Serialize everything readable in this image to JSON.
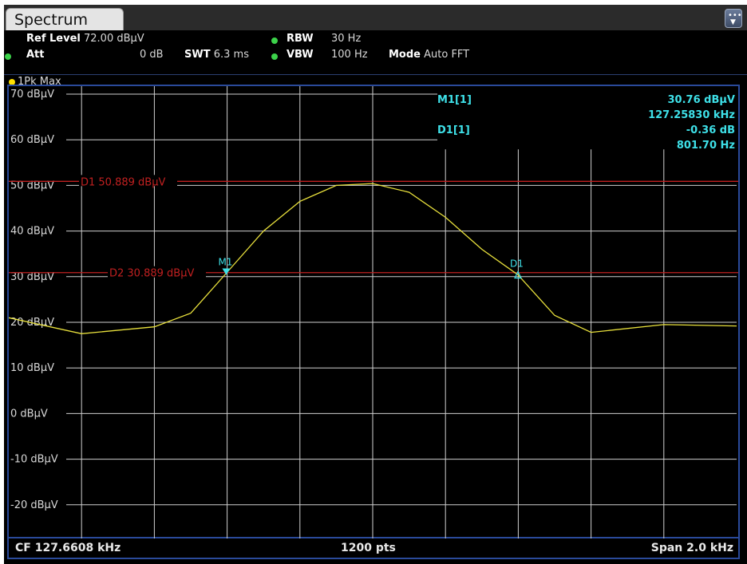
{
  "window": {
    "tab_title": "Spectrum"
  },
  "settings": {
    "ref_level_label": "Ref Level",
    "ref_level_value": "72.00 dBµV",
    "att_label": "Att",
    "att_value": "0 dB",
    "swt_label": "SWT",
    "swt_value": "6.3 ms",
    "rbw_label": "RBW",
    "rbw_value": "30 Hz",
    "vbw_label": "VBW",
    "vbw_value": "100 Hz",
    "mode_label": "Mode",
    "mode_value": "Auto FFT"
  },
  "trace": {
    "label": "1Pk Max"
  },
  "markers": {
    "m1_label": "M1[1]",
    "m1_level": "30.76 dBµV",
    "m1_freq": "127.25830 kHz",
    "d1_label": "D1[1]",
    "d1_level": "-0.36 dB",
    "d1_freq": "801.70 Hz",
    "m1_tag": "M1",
    "d1_tag": "D1"
  },
  "footer": {
    "cf": "CF 127.6608 kHz",
    "pts": "1200 pts",
    "span": "Span 2.0 kHz"
  },
  "colors": {
    "trace": "#e8e03c",
    "line": "#c02020",
    "marker": "#3ee0e8",
    "grid": "#cfcfcf",
    "background": "#000000"
  },
  "chart_data": {
    "type": "line",
    "x_unit": "kHz",
    "y_unit": "dBµV",
    "xlim": [
      126.6608,
      128.6608
    ],
    "ylim": [
      -30,
      70
    ],
    "y_tick_labels": [
      "70 dBµV",
      "60 dBµV",
      "50 dBµV",
      "40 dBµV",
      "30 dBµV",
      "20 dBµV",
      "10 dBµV",
      "0 dBµV",
      "-10 dBµV",
      "-20 dBµV"
    ],
    "y_ticks": [
      70,
      60,
      50,
      40,
      30,
      20,
      10,
      0,
      -10,
      -20
    ],
    "x_divisions": 10,
    "grid": true,
    "display_lines": [
      {
        "label": "D1  50.889 dBµV",
        "value": 50.889
      },
      {
        "label": "D2  30.889 dBµV",
        "value": 30.889
      }
    ],
    "series": [
      {
        "x": [
          126.6608,
          126.8608,
          127.0608,
          127.1608,
          127.2583,
          127.3608,
          127.4608,
          127.5608,
          127.6608,
          127.7608,
          127.8608,
          127.9608,
          128.06,
          128.1608,
          128.2608,
          128.4608,
          128.6608
        ],
        "y": [
          21.0,
          17.5,
          19.0,
          22.0,
          30.76,
          40.0,
          46.5,
          50.0,
          50.4,
          48.5,
          43.0,
          36.0,
          30.4,
          21.5,
          17.8,
          19.5,
          19.2
        ]
      }
    ],
    "markers": [
      {
        "name": "M1",
        "x": 127.2583,
        "y": 30.76
      },
      {
        "name": "D1",
        "x": 128.06,
        "y": 30.4
      }
    ]
  }
}
